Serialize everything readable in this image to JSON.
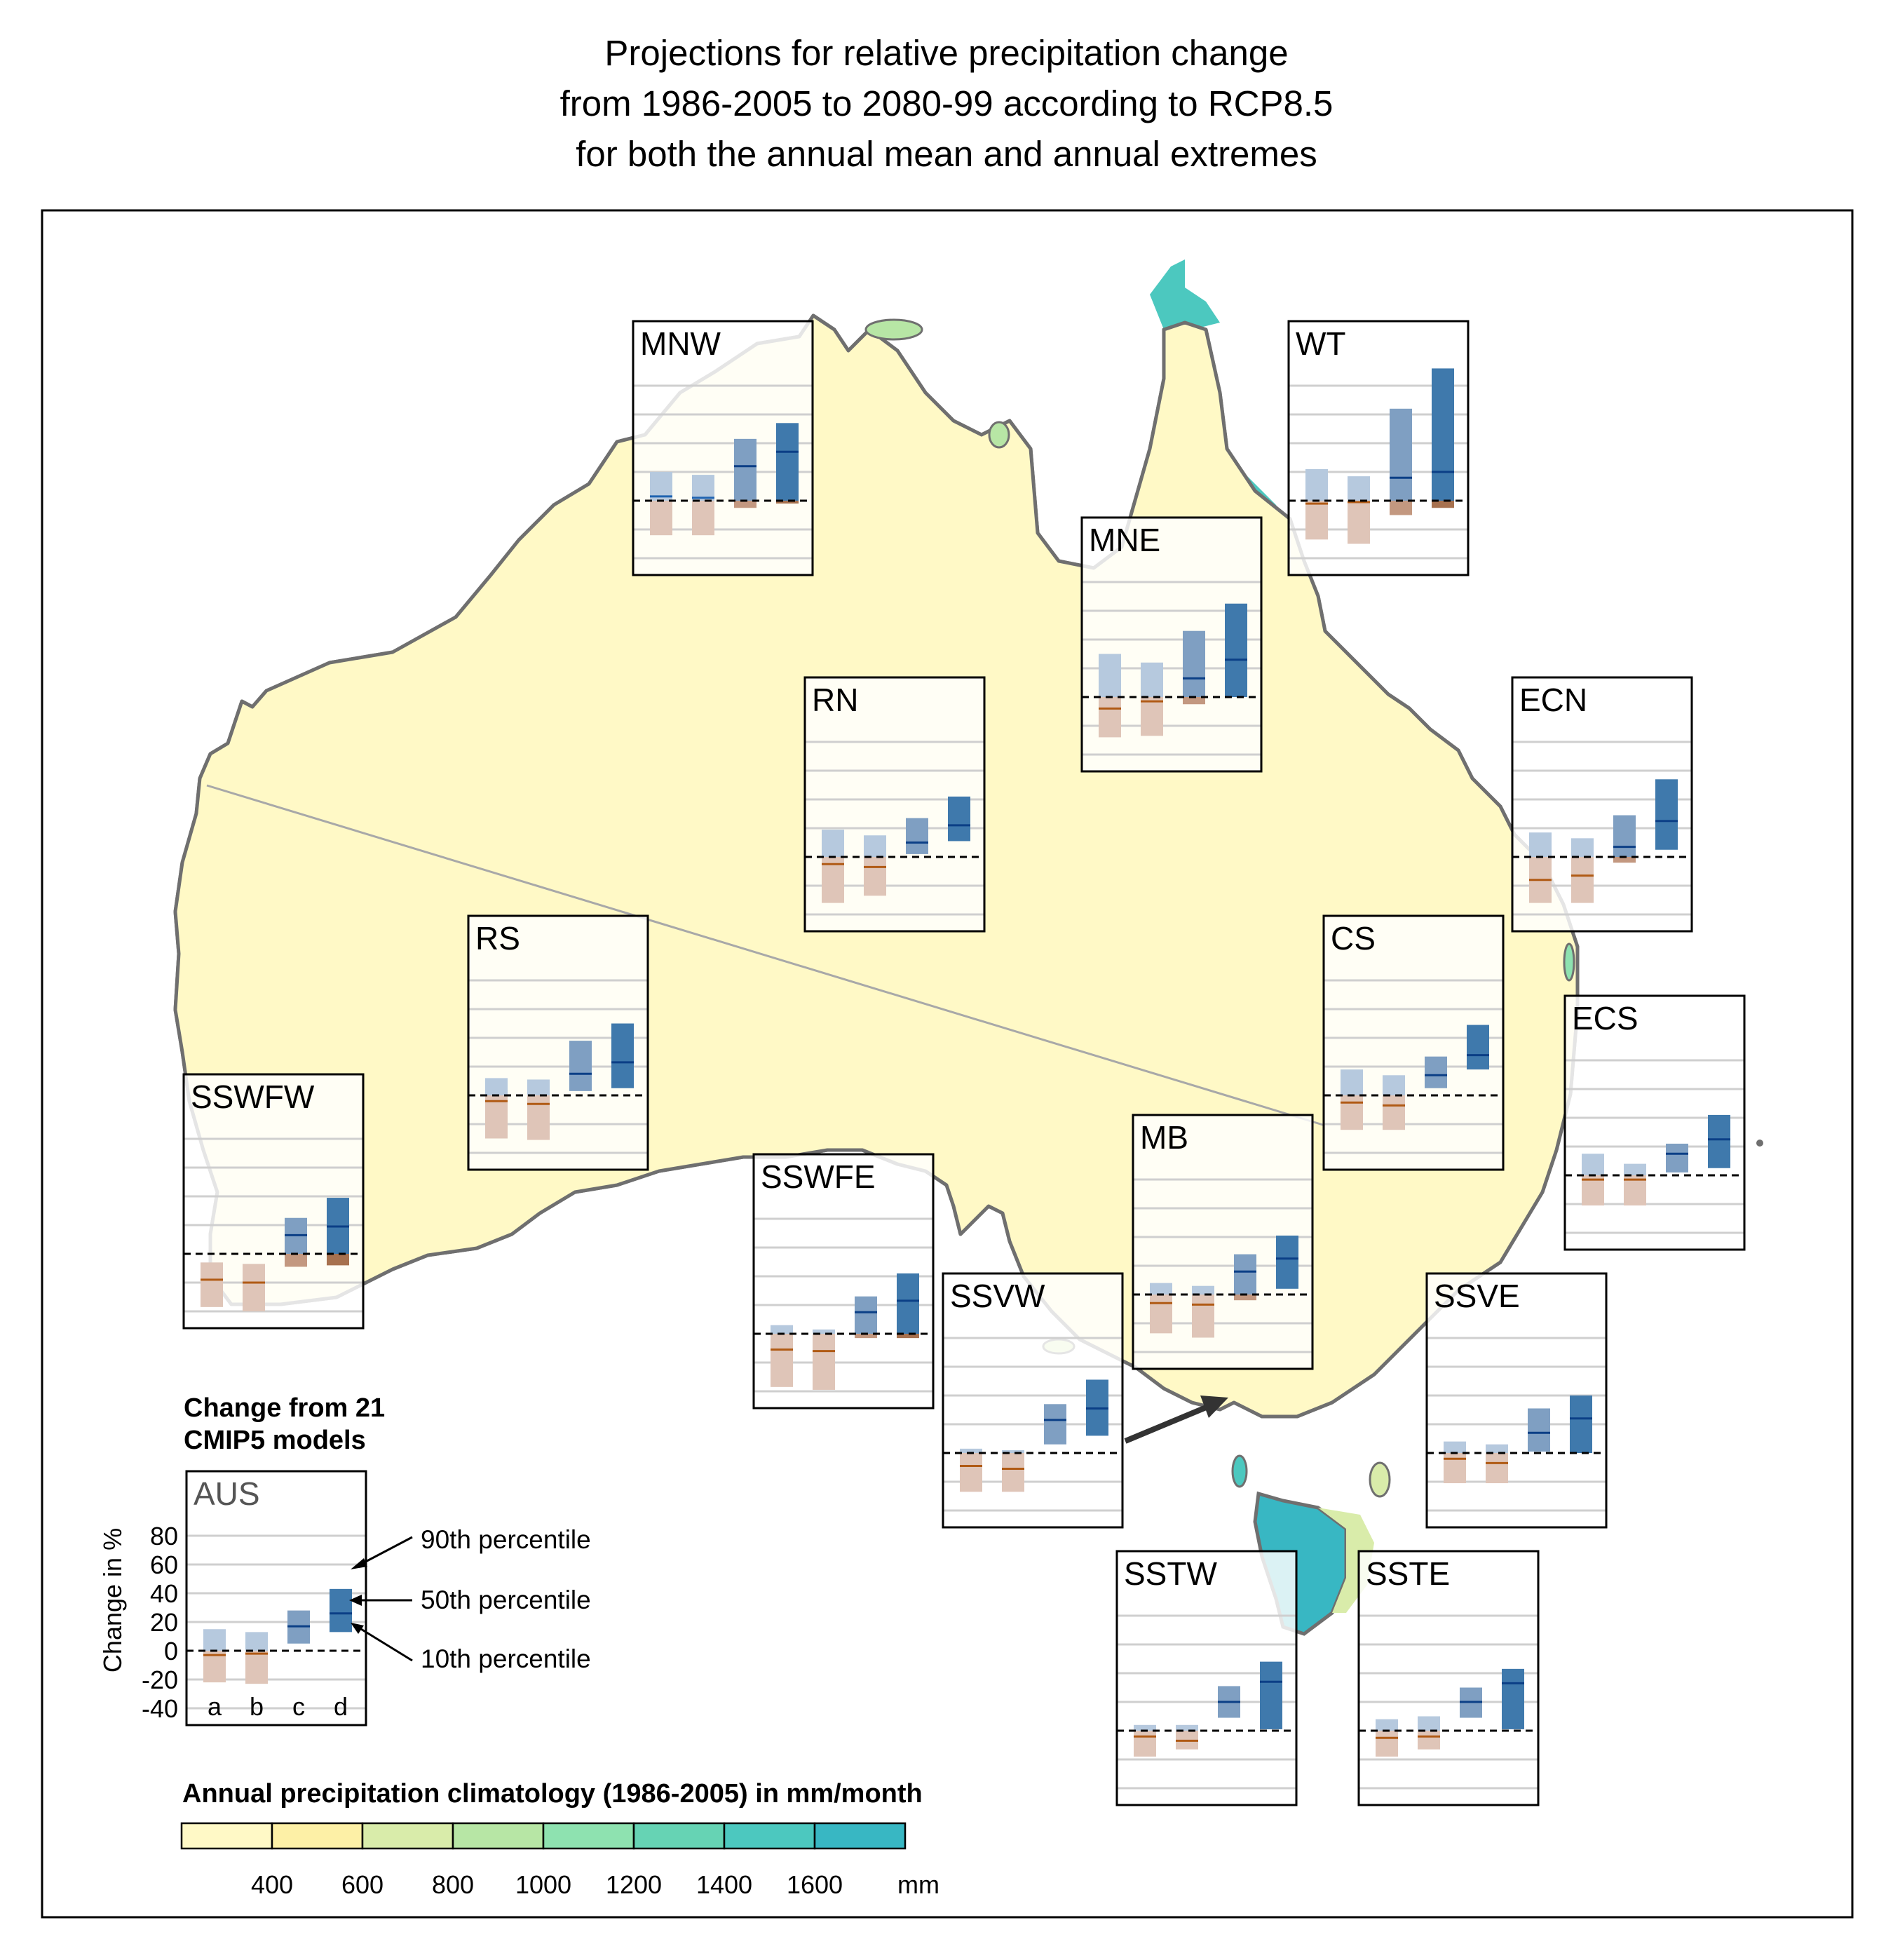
{
  "title": {
    "line1": "Projections for relative precipitation change",
    "line2": "from 1986-2005 to 2080-99 according to RCP8.5",
    "line3": "for both the annual mean and annual extremes"
  },
  "colors": {
    "c400": "#fff9c6",
    "c600": "#fdf0a6",
    "c800": "#d9ecaa",
    "c1000": "#b7e6a5",
    "c1200": "#8ee2b0",
    "c1400": "#66d3b4",
    "c1600": "#4cc8bf",
    "c1800": "#38b7c3",
    "bar_a": "#b6c9de",
    "bar_b": "#b6c9de",
    "bar_c": "#7f9fc2",
    "bar_d": "#3f79ac",
    "neg_a": "#dfc5b8",
    "neg_c": "#c39880",
    "neg_d": "#a7714f",
    "median_a": "#1f63b0",
    "median_neg": "#b05a14",
    "coast": "#6f6f6f"
  },
  "legend": {
    "panel_heading_line1": "Change from 21",
    "panel_heading_line2": "CMIP5 models",
    "panel_region": "AUS",
    "y_label": "Change in %",
    "y_ticks": [
      "80",
      "60",
      "40",
      "20",
      "0",
      "-20",
      "-40"
    ],
    "x_labels": [
      "a",
      "b",
      "c",
      "d"
    ],
    "p90": "90th percentile",
    "p50": "50th percentile",
    "p10": "10th percentile"
  },
  "colorbar": {
    "title": "Annual precipitation climatology (1986-2005) in mm/month",
    "ticks": [
      "400",
      "600",
      "800",
      "1000",
      "1200",
      "1400",
      "1600"
    ],
    "unit": "mm"
  },
  "chart_data": {
    "type": "bar",
    "categories": [
      "a",
      "b",
      "c",
      "d"
    ],
    "ylabel": "Change in %",
    "ylim": [
      -40,
      80
    ],
    "value_unit": "%",
    "panels": [
      {
        "region": "AUS",
        "p10": [
          -22,
          -23,
          5,
          13
        ],
        "p50": [
          -3,
          -2,
          17,
          26
        ],
        "p90": [
          15,
          13,
          28,
          43
        ]
      },
      {
        "region": "MNW",
        "p10": [
          -24,
          -24,
          -5,
          -2
        ],
        "p50": [
          3,
          2,
          24,
          34
        ],
        "p90": [
          20,
          18,
          43,
          54
        ]
      },
      {
        "region": "WT",
        "p10": [
          -27,
          -30,
          -10,
          -5
        ],
        "p50": [
          -2,
          -1,
          16,
          20
        ],
        "p90": [
          22,
          17,
          64,
          92
        ]
      },
      {
        "region": "MNE",
        "p10": [
          -28,
          -27,
          -5,
          0
        ],
        "p50": [
          -8,
          -3,
          13,
          26
        ],
        "p90": [
          30,
          24,
          46,
          65
        ]
      },
      {
        "region": "RN",
        "p10": [
          -32,
          -27,
          2,
          11
        ],
        "p50": [
          -5,
          -7,
          10,
          22
        ],
        "p90": [
          19,
          15,
          27,
          42
        ]
      },
      {
        "region": "ECN",
        "p10": [
          -32,
          -32,
          -4,
          5
        ],
        "p50": [
          -16,
          -13,
          7,
          25
        ],
        "p90": [
          17,
          13,
          29,
          54
        ]
      },
      {
        "region": "CS",
        "p10": [
          -24,
          -24,
          5,
          18
        ],
        "p50": [
          -5,
          -7,
          14,
          28
        ],
        "p90": [
          18,
          14,
          27,
          49
        ]
      },
      {
        "region": "ECS",
        "p10": [
          -21,
          -21,
          2,
          5
        ],
        "p50": [
          -3,
          -3,
          15,
          25
        ],
        "p90": [
          15,
          8,
          22,
          42
        ]
      },
      {
        "region": "RS",
        "p10": [
          -30,
          -31,
          3,
          5
        ],
        "p50": [
          -4,
          -6,
          15,
          23
        ],
        "p90": [
          12,
          11,
          38,
          50
        ]
      },
      {
        "region": "SSWFW",
        "p10": [
          -37,
          -40,
          -9,
          -8
        ],
        "p50": [
          -18,
          -20,
          13,
          19
        ],
        "p90": [
          -6,
          -7,
          25,
          39
        ]
      },
      {
        "region": "SSWFE",
        "p10": [
          -37,
          -39,
          -3,
          -3
        ],
        "p50": [
          -11,
          -12,
          15,
          23
        ],
        "p90": [
          6,
          3,
          26,
          42
        ]
      },
      {
        "region": "MB",
        "p10": [
          -27,
          -30,
          -4,
          4
        ],
        "p50": [
          -6,
          -7,
          16,
          25
        ],
        "p90": [
          8,
          6,
          28,
          41
        ]
      },
      {
        "region": "SSVW",
        "p10": [
          -27,
          -27,
          6,
          12
        ],
        "p50": [
          -9,
          -11,
          23,
          31
        ],
        "p90": [
          3,
          2,
          34,
          51
        ]
      },
      {
        "region": "SSVE",
        "p10": [
          -21,
          -21,
          1,
          0
        ],
        "p50": [
          -4,
          -7,
          14,
          24
        ],
        "p90": [
          8,
          6,
          31,
          40
        ]
      },
      {
        "region": "SSTW",
        "p10": [
          -18,
          -13,
          9,
          1
        ],
        "p50": [
          -4,
          -7,
          20,
          34
        ],
        "p90": [
          4,
          4,
          31,
          48
        ]
      },
      {
        "region": "SSTE",
        "p10": [
          -18,
          -13,
          9,
          1
        ],
        "p50": [
          -5,
          -4,
          20,
          33
        ],
        "p90": [
          8,
          10,
          30,
          43
        ]
      }
    ]
  }
}
